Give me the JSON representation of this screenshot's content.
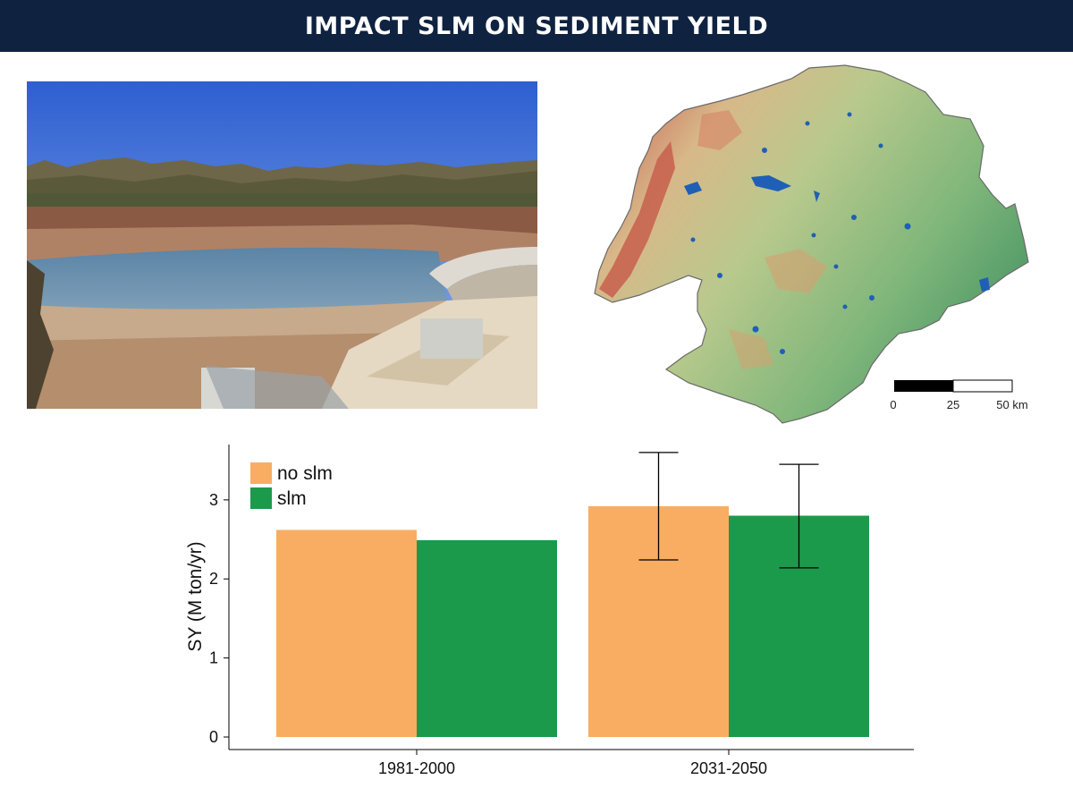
{
  "header": {
    "title": "IMPACT SLM ON SEDIMENT YIELD"
  },
  "colors": {
    "header_bg": "#0f2340",
    "no_slm": "#f9ad62",
    "slm": "#1c9a4c",
    "lake": "#1f5fb5"
  },
  "scale_bar": {
    "ticks": [
      "0",
      "25",
      "50 km"
    ]
  },
  "chart_data": {
    "type": "bar",
    "categories": [
      "1981-2000",
      "2031-2050"
    ],
    "series": [
      {
        "name": "no slm",
        "values": [
          2.62,
          2.92
        ],
        "err_low": [
          null,
          2.24
        ],
        "err_high": [
          null,
          3.6
        ]
      },
      {
        "name": "slm",
        "values": [
          2.49,
          2.8
        ],
        "err_low": [
          null,
          2.14
        ],
        "err_high": [
          null,
          3.45
        ]
      }
    ],
    "title": "",
    "xlabel": "",
    "ylabel": "SY (M ton/yr)",
    "yticks": [
      "0",
      "1",
      "2",
      "3"
    ],
    "ylim": [
      0,
      3.7
    ],
    "grid": false,
    "legend_position": "top-left"
  }
}
